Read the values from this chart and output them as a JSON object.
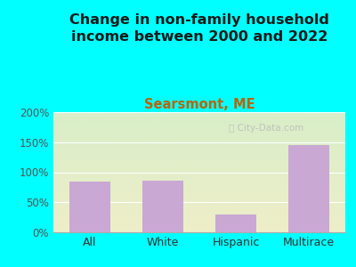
{
  "title": "Change in non-family household\nincome between 2000 and 2022",
  "subtitle": "Searsmont, ME",
  "categories": [
    "All",
    "White",
    "Hispanic",
    "Multirace"
  ],
  "values": [
    85,
    86,
    30,
    145
  ],
  "bar_color": "#C9A8D4",
  "title_fontsize": 11.5,
  "subtitle_fontsize": 10.5,
  "subtitle_color": "#b8650a",
  "title_color": "#1a1a1a",
  "background_outer": "#00FFFF",
  "ylim": [
    0,
    200
  ],
  "yticks": [
    0,
    50,
    100,
    150,
    200
  ],
  "ytick_labels": [
    "0%",
    "50%",
    "100%",
    "150%",
    "200%"
  ],
  "watermark": "City-Data.com"
}
